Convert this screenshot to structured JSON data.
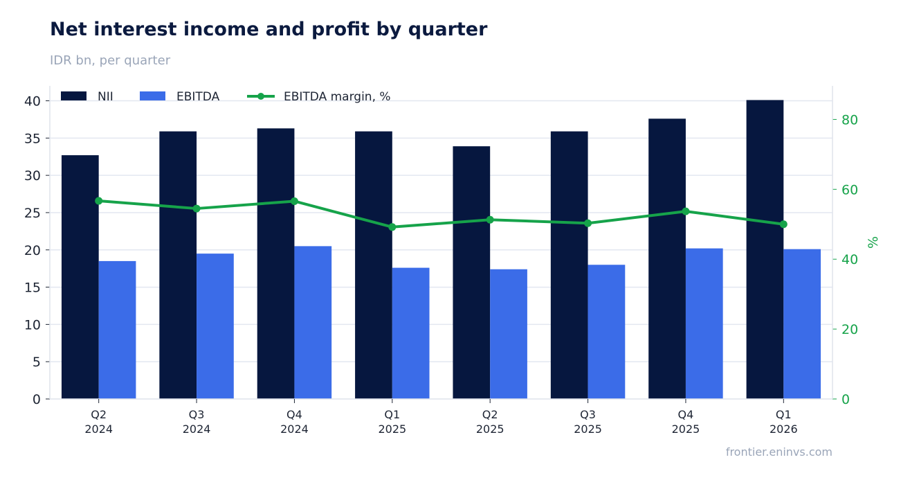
{
  "header": {
    "title": "Net interest income and profit by quarter",
    "subtitle": "IDR bn, per quarter"
  },
  "footer": {
    "source": "frontier.eninvs.com"
  },
  "chart_data": {
    "type": "bar",
    "categories": [
      [
        "Q2",
        "2024"
      ],
      [
        "Q3",
        "2024"
      ],
      [
        "Q4",
        "2024"
      ],
      [
        "Q1",
        "2025"
      ],
      [
        "Q2",
        "2025"
      ],
      [
        "Q3",
        "2025"
      ],
      [
        "Q4",
        "2025"
      ],
      [
        "Q1",
        "2026"
      ]
    ],
    "series": [
      {
        "name": "NII",
        "kind": "bar",
        "axis": "left",
        "color": "#06173f",
        "values": [
          32.7,
          35.9,
          36.3,
          35.9,
          33.9,
          35.9,
          37.6,
          40.1
        ]
      },
      {
        "name": "EBITDA",
        "kind": "bar",
        "axis": "left",
        "color": "#3b6ce8",
        "values": [
          18.5,
          19.5,
          20.5,
          17.6,
          17.4,
          18.0,
          20.2,
          20.1
        ]
      },
      {
        "name": "EBITDA margin, %",
        "kind": "line",
        "axis": "right",
        "color": "#16a34a",
        "values": [
          56.7,
          54.5,
          56.6,
          49.2,
          51.3,
          50.3,
          53.7,
          50.0
        ]
      }
    ],
    "y_left": {
      "min": 0,
      "max": 42,
      "ticks": [
        0,
        5,
        10,
        15,
        20,
        25,
        30,
        35,
        40
      ]
    },
    "y_right": {
      "label": "%",
      "min": 0,
      "max": 89.6,
      "ticks": [
        0,
        20,
        40,
        60,
        80
      ]
    },
    "grid": true,
    "legend": "top-left"
  }
}
